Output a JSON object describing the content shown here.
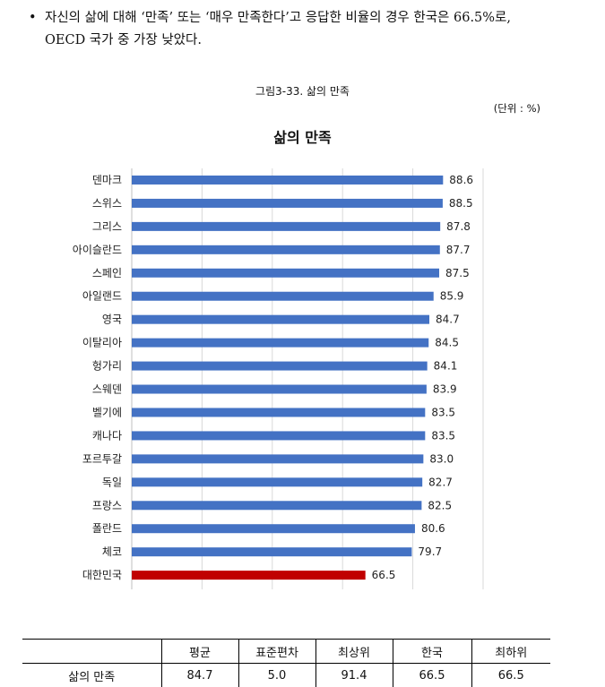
{
  "paragraph": {
    "bullet": "•",
    "line1": "자신의 삶에 대해 ‘만족’ 또는 ‘매우 만족한다’고 응답한 비율의 경우 한국은 66.5%로,",
    "line2": "OECD 국가 중 가장 낮았다."
  },
  "figure": {
    "caption": "그림3-33. 삶의 만족",
    "unit": "(단위 : %)"
  },
  "chart_data": {
    "type": "bar",
    "orientation": "horizontal",
    "title": "삶의 만족",
    "categories": [
      "덴마크",
      "스위스",
      "그리스",
      "아이슬란드",
      "스페인",
      "아일랜드",
      "영국",
      "이탈리아",
      "헝가리",
      "스웨덴",
      "벨기에",
      "캐나다",
      "포르투갈",
      "독일",
      "프랑스",
      "폴란드",
      "체코",
      "대한민국"
    ],
    "values": [
      88.6,
      88.5,
      87.8,
      87.7,
      87.5,
      85.9,
      84.7,
      84.5,
      84.1,
      83.9,
      83.5,
      83.5,
      83.0,
      82.7,
      82.5,
      80.6,
      79.7,
      66.5
    ],
    "value_labels": [
      "88.6",
      "88.5",
      "87.8",
      "87.7",
      "87.5",
      "85.9",
      "84.7",
      "84.5",
      "84.1",
      "83.9",
      "83.5",
      "83.5",
      "83.0",
      "82.7",
      "82.5",
      "80.6",
      "79.7",
      "66.5"
    ],
    "xlim": [
      0,
      100
    ],
    "grid": true,
    "colors": {
      "default": "#4472c4",
      "highlight": "#c00000",
      "grid": "#d9d9d9"
    },
    "highlight_category": "대한민국"
  },
  "table": {
    "headers": [
      "",
      "평균",
      "표준편차",
      "최상위",
      "한국",
      "최하위"
    ],
    "rows": [
      {
        "label": "삶의 만족",
        "values": [
          "84.7",
          "5.0",
          "91.4",
          "66.5",
          "66.5"
        ]
      }
    ]
  }
}
